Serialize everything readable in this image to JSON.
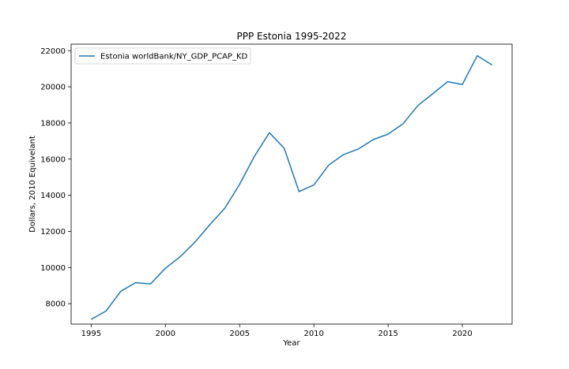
{
  "chart_data": {
    "type": "line",
    "title": "PPP Estonia 1995-2022",
    "xlabel": "Year",
    "ylabel": "Dollars, 2010 Equivelant",
    "xlim": [
      1993.65,
      2023.35
    ],
    "ylim": [
      6870,
      22360
    ],
    "xticks": [
      1995,
      2000,
      2005,
      2010,
      2015,
      2020
    ],
    "yticks": [
      8000,
      10000,
      12000,
      14000,
      16000,
      18000,
      20000,
      22000
    ],
    "grid": false,
    "legend_position": "upper left",
    "series": [
      {
        "name": "Estonia worldBank/NY_GDP_PCAP_KD",
        "color": "#1f77b4",
        "x": [
          1995,
          1996,
          1997,
          1998,
          1999,
          2000,
          2001,
          2002,
          2003,
          2004,
          2005,
          2006,
          2007,
          2008,
          2009,
          2010,
          2011,
          2012,
          2013,
          2014,
          2015,
          2016,
          2017,
          2018,
          2019,
          2020,
          2021,
          2022
        ],
        "y": [
          7130,
          7590,
          8690,
          9160,
          9090,
          9960,
          10600,
          11410,
          12380,
          13280,
          14610,
          16160,
          17460,
          16600,
          14200,
          14570,
          15670,
          16250,
          16560,
          17080,
          17380,
          17950,
          18960,
          19610,
          20280,
          20130,
          21720,
          21210
        ]
      }
    ]
  }
}
